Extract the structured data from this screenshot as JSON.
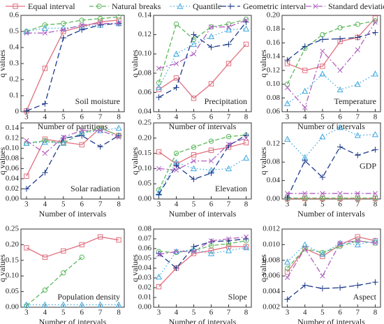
{
  "chart_data": [
    {
      "type": "line",
      "annotation": "Soil moisture",
      "x_label": "Number of partitions",
      "y_label": "q values",
      "x": [
        3,
        4,
        5,
        6,
        7,
        8
      ],
      "xlim": [
        2.7,
        8.3
      ],
      "xticks": [
        3,
        4,
        5,
        6,
        7,
        8
      ],
      "ylim": [
        0,
        0.6
      ],
      "yticks": [
        0,
        0.1,
        0.2,
        0.3,
        0.4,
        0.5,
        0.6
      ],
      "series": [
        {
          "name": "Equal interval",
          "color": "#e0707f",
          "values": [
            0.005,
            0.27,
            0.5,
            0.53,
            0.56,
            0.57
          ]
        },
        {
          "name": "Natural breaks",
          "color": "#5cb85c",
          "values": [
            0.5,
            0.54,
            0.55,
            0.57,
            0.58,
            0.59
          ]
        },
        {
          "name": "Quantile",
          "color": "#3fa9e0",
          "values": [
            0.5,
            0.52,
            0.52,
            0.53,
            0.54,
            0.55
          ]
        },
        {
          "name": "Geometric interval",
          "color": "#1d3a8a",
          "values": [
            0.005,
            0.05,
            0.46,
            0.51,
            0.54,
            0.55
          ]
        },
        {
          "name": "Standard deviation",
          "color": "#b060c0",
          "values": [
            0.49,
            0.49,
            0.51,
            0.54,
            0.55,
            0.55
          ]
        }
      ]
    },
    {
      "type": "line",
      "annotation": "Precipitation",
      "x_label": "Number of intervals",
      "y_label": "q values",
      "x": [
        3,
        4,
        5,
        6,
        7,
        8
      ],
      "xlim": [
        2.7,
        8.3
      ],
      "xticks": [
        3,
        4,
        5,
        6,
        7,
        8
      ],
      "ylim": [
        0.04,
        0.14
      ],
      "yticks": [
        0.04,
        0.06,
        0.08,
        {
          "value": 0.1,
          "label": "0.10"
        },
        0.12,
        0.14
      ],
      "series": [
        {
          "color": "#e0707f",
          "values": [
            0.063,
            0.075,
            0.054,
            0.069,
            0.09,
            0.11
          ]
        },
        {
          "color": "#5cb85c",
          "values": [
            0.07,
            0.131,
            0.115,
            0.128,
            0.131,
            0.136
          ]
        },
        {
          "color": "#3fa9e0",
          "values": [
            0.065,
            0.1,
            0.11,
            0.118,
            0.125,
            0.126
          ]
        },
        {
          "color": "#1d3a8a",
          "values": [
            0.055,
            0.065,
            0.12,
            0.107,
            0.11,
            0.133
          ]
        },
        {
          "color": "#b060c0",
          "values": [
            0.085,
            0.09,
            0.1,
            0.128,
            0.128,
            0.135
          ]
        }
      ]
    },
    {
      "type": "line",
      "annotation": "Temperature",
      "x_label": "Number of intervals",
      "y_label": "q values",
      "x": [
        3,
        4,
        5,
        6,
        7,
        8
      ],
      "xlim": [
        2.7,
        8.3
      ],
      "xticks": [
        3,
        4,
        5,
        6,
        7,
        8
      ],
      "ylim": [
        0.06,
        0.2
      ],
      "yticks": [
        0.06,
        0.08,
        {
          "value": 0.1,
          "label": "0.10"
        },
        0.12,
        0.14,
        0.16,
        0.18,
        {
          "value": 0.2,
          "label": "0.20"
        }
      ],
      "series": [
        {
          "color": "#e0707f",
          "values": [
            0.13,
            0.12,
            0.126,
            0.162,
            0.168,
            0.196
          ]
        },
        {
          "color": "#5cb85c",
          "values": [
            0.1,
            0.152,
            0.172,
            0.182,
            0.187,
            0.192
          ]
        },
        {
          "color": "#3fa9e0",
          "values": [
            0.072,
            0.09,
            0.115,
            0.092,
            0.1,
            0.115
          ]
        },
        {
          "color": "#1d3a8a",
          "values": [
            0.135,
            0.155,
            0.165,
            0.166,
            0.168,
            0.175
          ]
        },
        {
          "color": "#b060c0",
          "values": [
            0.095,
            0.066,
            0.148,
            0.12,
            0.15,
            0.19
          ]
        }
      ]
    },
    {
      "type": "line",
      "annotation": "Solar radiation",
      "x_label": "Number of intervals",
      "y_label": "q values",
      "x": [
        3,
        4,
        5,
        6,
        7,
        8
      ],
      "xlim": [
        2.7,
        8.3
      ],
      "xticks": [
        3,
        4,
        5,
        6,
        7,
        8
      ],
      "ylim": [
        0,
        0.15
      ],
      "yticks": [
        {
          "value": 0,
          "label": "0.00"
        },
        0.02,
        0.04,
        0.06,
        0.08,
        {
          "value": 0.1,
          "label": "0.10"
        },
        0.12,
        0.14
      ],
      "series": [
        {
          "color": "#e0707f",
          "values": [
            0.045,
            0.118,
            0.112,
            0.107,
            0.14,
            0.125
          ]
        },
        {
          "color": "#5cb85c",
          "values": [
            0.11,
            0.115,
            0.11,
            0.13,
            0.14,
            0.125
          ]
        },
        {
          "color": "#3fa9e0",
          "values": [
            0.11,
            0.112,
            0.11,
            0.13,
            0.135,
            0.14
          ]
        },
        {
          "color": "#1d3a8a",
          "values": [
            0.02,
            0.052,
            0.12,
            0.125,
            0.103,
            0.125
          ]
        },
        {
          "color": "#b060c0",
          "values": [
            0.115,
            0.09,
            0.122,
            0.135,
            0.135,
            0.122
          ]
        }
      ]
    },
    {
      "type": "line",
      "annotation": "Elevation",
      "x_label": "Number of intervals",
      "y_label": "q values",
      "x": [
        3,
        4,
        5,
        6,
        7,
        8
      ],
      "xlim": [
        2.7,
        8.3
      ],
      "xticks": [
        3,
        4,
        5,
        6,
        7,
        8
      ],
      "ylim": [
        0,
        0.25
      ],
      "yticks": [
        {
          "value": 0,
          "label": "0.00"
        },
        0.05,
        {
          "value": 0.1,
          "label": "0.10"
        },
        0.15,
        {
          "value": 0.2,
          "label": "0.20"
        },
        0.25
      ],
      "series": [
        {
          "color": "#e0707f",
          "values": [
            0.155,
            0.115,
            0.145,
            0.16,
            0.17,
            0.185
          ]
        },
        {
          "color": "#5cb85c",
          "values": [
            0.03,
            0.15,
            0.17,
            0.19,
            0.205,
            0.21
          ]
        },
        {
          "color": "#3fa9e0",
          "values": [
            0.02,
            0.12,
            0.1,
            0.095,
            0.1,
            0.135
          ]
        },
        {
          "color": "#1d3a8a",
          "values": [
            0.015,
            0.11,
            0.065,
            0.085,
            0.175,
            0.21
          ]
        },
        {
          "color": "#b060c0",
          "values": [
            0.1,
            0.095,
            0.125,
            0.125,
            0.18,
            0.2
          ]
        }
      ]
    },
    {
      "type": "line",
      "annotation": "GDP",
      "x_label": "Number of intervals",
      "y_label": "q values",
      "x": [
        3,
        4,
        5,
        6,
        7,
        8
      ],
      "xlim": [
        2.7,
        8.3
      ],
      "xticks": [
        3,
        4,
        5,
        6,
        7,
        8
      ],
      "ylim": [
        0,
        0.165
      ],
      "yticks": [
        {
          "value": 0,
          "label": "0.00"
        },
        0.04,
        0.08,
        0.12
      ],
      "series": [
        {
          "color": "#e0707f",
          "values": [
            0.001,
            0.001,
            0.001,
            0.001,
            0.001,
            0.001
          ]
        },
        {
          "color": "#5cb85c",
          "values": [
            0.002,
            0.002,
            0.002,
            0.002,
            0.002,
            0.002
          ]
        },
        {
          "color": "#3fa9e0",
          "values": [
            0.13,
            0.09,
            0.135,
            0.155,
            0.138,
            0.14
          ]
        },
        {
          "color": "#1d3a8a",
          "values": [
            0.003,
            0.083,
            0.047,
            0.113,
            0.095,
            0.107
          ]
        },
        {
          "color": "#b060c0",
          "values": [
            0.012,
            0.012,
            0.012,
            0.012,
            0.012,
            0.012
          ]
        }
      ]
    },
    {
      "type": "line",
      "annotation": "Population density",
      "x_label": "Number of intervals",
      "y_label": "q values",
      "x": [
        3,
        4,
        5,
        6,
        7,
        8
      ],
      "xlim": [
        2.7,
        8.3
      ],
      "xticks": [
        3,
        4,
        5,
        6,
        7,
        8
      ],
      "ylim": [
        0,
        0.25
      ],
      "yticks": [
        {
          "value": 0,
          "label": "0.00"
        },
        0.05,
        {
          "value": 0.1,
          "label": "0.10"
        },
        0.15,
        {
          "value": 0.2,
          "label": "0.20"
        },
        0.25
      ],
      "series": [
        {
          "color": "#e0707f",
          "values": [
            0.19,
            0.16,
            0.18,
            0.2,
            0.225,
            0.215
          ]
        },
        {
          "color": "#5cb85c",
          "values": [
            0.005,
            0.055,
            0.11,
            0.16,
            null,
            null
          ]
        },
        {
          "color": "#3fa9e0",
          "values": [
            0.008,
            0.008,
            0.008,
            0.008,
            0.008,
            0.008
          ]
        },
        {
          "color": "#1d3a8a",
          "values": [
            null,
            null,
            null,
            null,
            null,
            null
          ]
        },
        {
          "color": "#b060c0",
          "values": [
            null,
            null,
            null,
            null,
            null,
            null
          ]
        }
      ]
    },
    {
      "type": "line",
      "annotation": "Slope",
      "x_label": "Number of intervals",
      "y_label": "q values",
      "x": [
        3,
        4,
        5,
        6,
        7,
        8
      ],
      "xlim": [
        2.7,
        8.3
      ],
      "xticks": [
        3,
        4,
        5,
        6,
        7,
        8
      ],
      "ylim": [
        0,
        0.08
      ],
      "yticks": [
        {
          "value": 0,
          "label": "0.00"
        },
        0.01,
        0.02,
        0.03,
        0.04,
        0.05,
        0.06,
        0.07,
        0.08
      ],
      "series": [
        {
          "color": "#e0707f",
          "values": [
            0.021,
            0.04,
            0.055,
            0.058,
            0.062,
            0.062
          ]
        },
        {
          "color": "#5cb85c",
          "values": [
            0.057,
            0.056,
            0.058,
            0.063,
            0.065,
            0.068
          ]
        },
        {
          "color": "#3fa9e0",
          "values": [
            0.031,
            0.057,
            0.059,
            0.055,
            0.058,
            0.061
          ]
        },
        {
          "color": "#1d3a8a",
          "values": [
            0.055,
            0.04,
            0.062,
            0.067,
            0.068,
            0.07
          ]
        },
        {
          "color": "#b060c0",
          "values": [
            0.054,
            0.057,
            0.057,
            0.068,
            0.07,
            0.072
          ]
        }
      ]
    },
    {
      "type": "line",
      "annotation": "Aspect",
      "x_label": "Number of intervals",
      "y_label": "q values",
      "x": [
        3,
        4,
        5,
        6,
        7,
        8
      ],
      "xlim": [
        2.7,
        8.3
      ],
      "xticks": [
        3,
        4,
        5,
        6,
        7,
        8
      ],
      "ylim": [
        0.002,
        0.012
      ],
      "yticks": [
        0.002,
        0.004,
        0.006,
        0.008,
        {
          "value": 0.01,
          "label": "0.010"
        },
        0.012
      ],
      "series": [
        {
          "color": "#e0707f",
          "values": [
            0.0065,
            0.0095,
            0.0085,
            0.01,
            0.011,
            0.0105
          ]
        },
        {
          "color": "#5cb85c",
          "values": [
            0.007,
            0.0095,
            0.009,
            0.0098,
            0.0105,
            0.0102
          ]
        },
        {
          "color": "#3fa9e0",
          "values": [
            0.0078,
            0.01,
            0.0088,
            0.0102,
            0.01,
            0.0105
          ]
        },
        {
          "color": "#1d3a8a",
          "values": [
            0.003,
            0.0048,
            0.0044,
            0.0045,
            0.0048,
            0.0052
          ]
        },
        {
          "color": "#b060c0",
          "values": [
            0.0058,
            0.0095,
            0.006,
            0.0102,
            0.0105,
            0.0102
          ]
        }
      ]
    }
  ]
}
